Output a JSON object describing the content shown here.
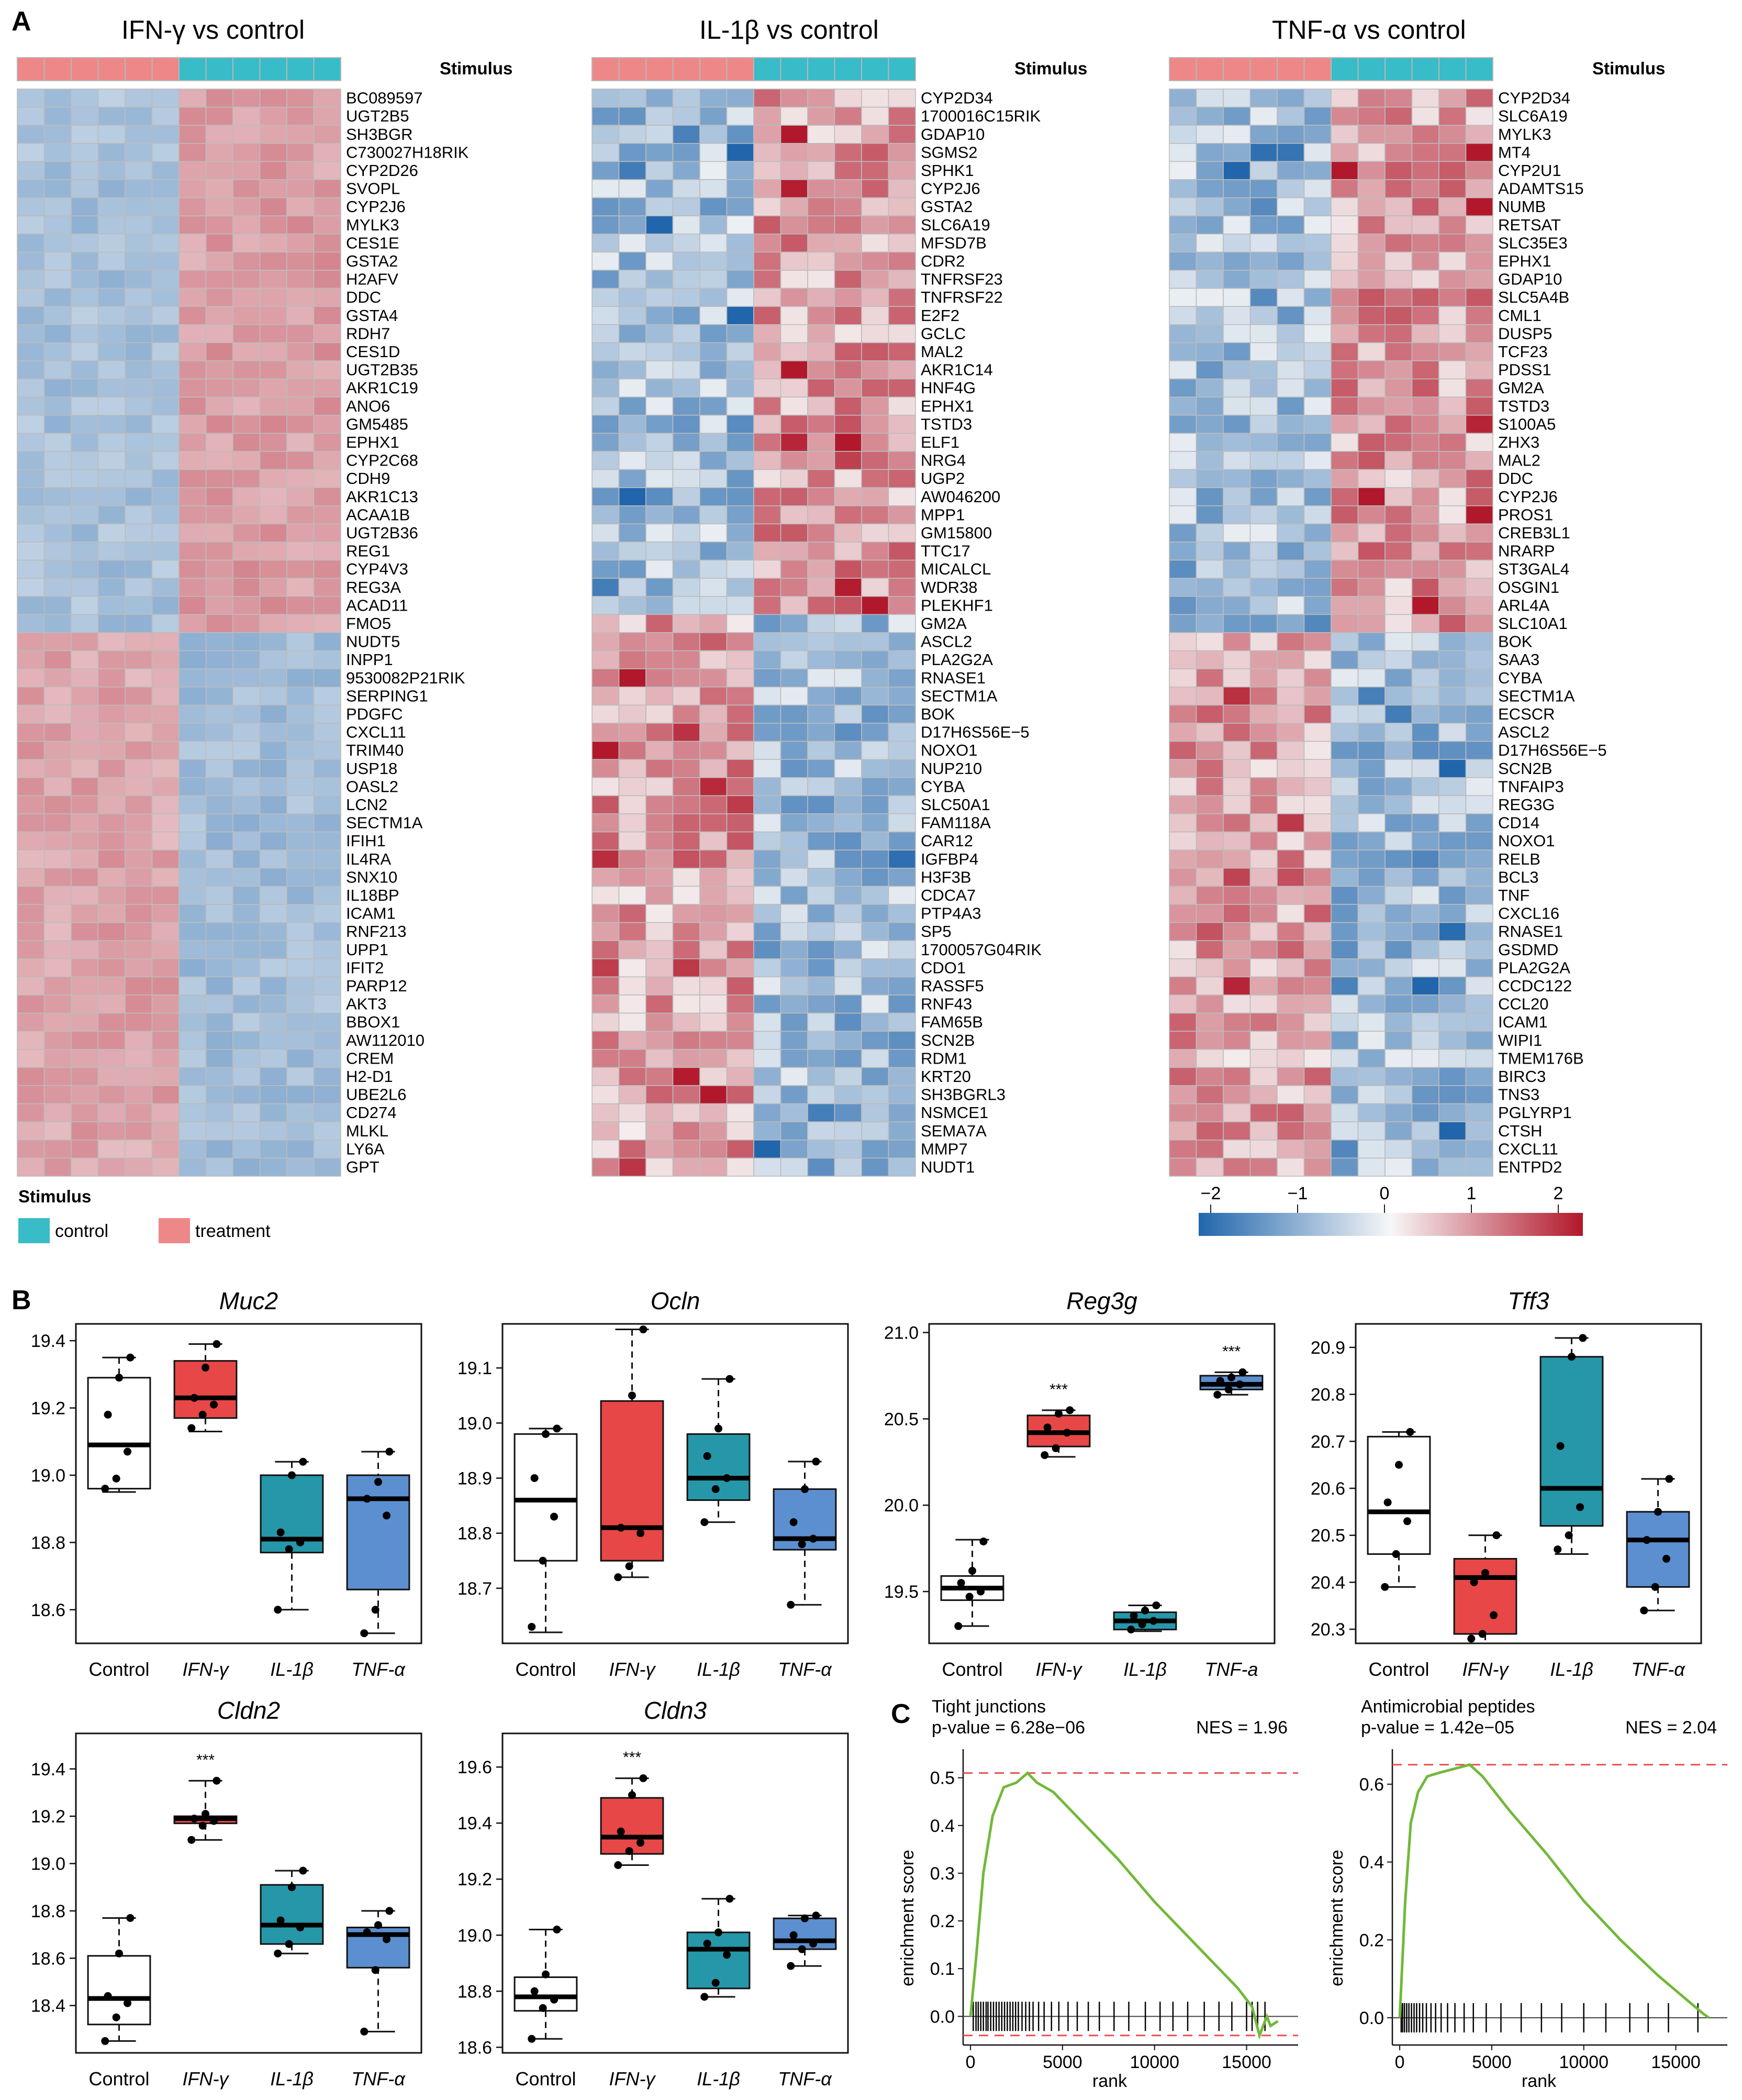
{
  "panel_labels": {
    "a": "A",
    "b": "B",
    "c": "C"
  },
  "heatmaps": [
    {
      "title": "IFN-γ vs control",
      "stimulus_label": "Stimulus",
      "up_count": 30,
      "genes": [
        "BC089597",
        "UGT2B5",
        "SH3BGR",
        "C730027H18RIK",
        "CYP2D26",
        "SVOPL",
        "CYP2J6",
        "MYLK3",
        "CES1E",
        "GSTA2",
        "H2AFV",
        "DDC",
        "GSTA4",
        "RDH7",
        "CES1D",
        "UGT2B35",
        "AKR1C19",
        "ANO6",
        "GM5485",
        "EPHX1",
        "CYP2C68",
        "CDH9",
        "AKR1C13",
        "ACAA1B",
        "UGT2B36",
        "REG1",
        "CYP4V3",
        "REG3A",
        "ACAD11",
        "FMO5",
        "NUDT5",
        "INPP1",
        "9530082P21RIK",
        "SERPING1",
        "PDGFC",
        "CXCL11",
        "TRIM40",
        "USP18",
        "OASL2",
        "LCN2",
        "SECTM1A",
        "IFIH1",
        "IL4RA",
        "SNX10",
        "IL18BP",
        "ICAM1",
        "RNF213",
        "UPP1",
        "IFIT2",
        "PARP12",
        "AKT3",
        "BBOX1",
        "AW112010",
        "CREM",
        "H2-D1",
        "UBE2L6",
        "CD274",
        "MLKL",
        "LY6A",
        "GPT"
      ]
    },
    {
      "title": "IL-1β vs control",
      "stimulus_label": "Stimulus",
      "up_count": 29,
      "genes": [
        "CYP2D34",
        "1700016C15RIK",
        "GDAP10",
        "SGMS2",
        "SPHK1",
        "CYP2J6",
        "GSTA2",
        "SLC6A19",
        "MFSD7B",
        "CDR2",
        "TNFRSF23",
        "TNFRSF22",
        "E2F2",
        "GCLC",
        "MAL2",
        "AKR1C14",
        "HNF4G",
        "EPHX1",
        "TSTD3",
        "ELF1",
        "NRG4",
        "UGP2",
        "AW046200",
        "MPP1",
        "GM15800",
        "TTC17",
        "MICALCL",
        "WDR38",
        "PLEKHF1",
        "GM2A",
        "ASCL2",
        "PLA2G2A",
        "RNASE1",
        "SECTM1A",
        "BOK",
        "D17H6S56E−5",
        "NOXO1",
        "NUP210",
        "CYBA",
        "SLC50A1",
        "FAM118A",
        "CAR12",
        "IGFBP4",
        "H3F3B",
        "CDCA7",
        "PTP4A3",
        "SP5",
        "1700057G04RIK",
        "CDO1",
        "RASSF5",
        "RNF43",
        "FAM65B",
        "SCN2B",
        "RDM1",
        "KRT20",
        "SH3BGRL3",
        "NSMCE1",
        "SEMA7A",
        "MMP7",
        "NUDT1"
      ]
    },
    {
      "title": "TNF-α vs control",
      "stimulus_label": "Stimulus",
      "up_count": 30,
      "genes": [
        "CYP2D34",
        "SLC6A19",
        "MYLK3",
        "MT4",
        "CYP2U1",
        "ADAMTS15",
        "NUMB",
        "RETSAT",
        "SLC35E3",
        "EPHX1",
        "GDAP10",
        "SLC5A4B",
        "CML1",
        "DUSP5",
        "TCF23",
        "PDSS1",
        "GM2A",
        "TSTD3",
        "S100A5",
        "ZHX3",
        "MAL2",
        "DDC",
        "CYP2J6",
        "PROS1",
        "CREB3L1",
        "NRARP",
        "ST3GAL4",
        "OSGIN1",
        "ARL4A",
        "SLC10A1",
        "BOK",
        "SAA3",
        "CYBA",
        "SECTM1A",
        "ECSCR",
        "ASCL2",
        "D17H6S56E−5",
        "SCN2B",
        "TNFAIP3",
        "REG3G",
        "CD14",
        "NOXO1",
        "RELB",
        "BCL3",
        "TNF",
        "CXCL16",
        "RNASE1",
        "GSDMD",
        "PLA2G2A",
        "CCDC122",
        "CCL20",
        "ICAM1",
        "WIPI1",
        "TMEM176B",
        "BIRC3",
        "TNS3",
        "PGLYRP1",
        "CTSH",
        "CXCL11",
        "ENTPD2"
      ]
    }
  ],
  "legend": {
    "title": "Stimulus",
    "control": "control",
    "treatment": "treatment",
    "control_color": "#38BCC8",
    "treatment_color": "#EE8888"
  },
  "colorbar": {
    "ticks": [
      "−2",
      "−1",
      "0",
      "1",
      "2"
    ],
    "low_color": "#2166AC",
    "mid_color": "#F7F7F7",
    "high_color": "#B2182B"
  },
  "group_colors": {
    "Control": "#FFFFFF",
    "IFN-γ": "#E84747",
    "IL-1β": "#2697A9",
    "TNF-α": "#5B8FD0"
  },
  "chart_data": [
    {
      "type": "box",
      "title": "Muc2",
      "categories": [
        "Control",
        "IFN-γ",
        "IL-1β",
        "TNF-α"
      ],
      "ylim": [
        18.5,
        19.45
      ],
      "yticks": [
        "18.6",
        "18.8",
        "19.0",
        "19.2",
        "19.4"
      ],
      "ytick_values": [
        18.6,
        18.8,
        19.0,
        19.2,
        19.4
      ],
      "boxes": [
        {
          "min": 18.95,
          "q1": 18.96,
          "median": 19.09,
          "q3": 19.29,
          "max": 19.35
        },
        {
          "min": 19.13,
          "q1": 19.17,
          "median": 19.23,
          "q3": 19.34,
          "max": 19.39
        },
        {
          "min": 18.6,
          "q1": 18.77,
          "median": 18.81,
          "q3": 19.0,
          "max": 19.04
        },
        {
          "min": 18.53,
          "q1": 18.66,
          "median": 18.93,
          "q3": 19.0,
          "max": 19.07
        }
      ],
      "points": [
        [
          18.96,
          18.99,
          19.07,
          19.18,
          19.29,
          19.35
        ],
        [
          19.14,
          19.18,
          19.21,
          19.23,
          19.32,
          19.39
        ],
        [
          18.6,
          18.78,
          18.8,
          18.83,
          19.0,
          19.04
        ],
        [
          18.53,
          18.6,
          18.88,
          18.93,
          18.98,
          19.07
        ]
      ],
      "significance": [
        "",
        "",
        "",
        ""
      ]
    },
    {
      "type": "box",
      "title": "Ocln",
      "categories": [
        "Control",
        "IFN-γ",
        "IL-1β",
        "TNF-α"
      ],
      "ylim": [
        18.6,
        19.18
      ],
      "yticks": [
        "18.7",
        "18.8",
        "18.9",
        "19.0",
        "19.1"
      ],
      "ytick_values": [
        18.7,
        18.8,
        18.9,
        19.0,
        19.1
      ],
      "boxes": [
        {
          "min": 18.62,
          "q1": 18.75,
          "median": 18.86,
          "q3": 18.98,
          "max": 18.99
        },
        {
          "min": 18.72,
          "q1": 18.75,
          "median": 18.81,
          "q3": 19.04,
          "max": 19.17
        },
        {
          "min": 18.82,
          "q1": 18.86,
          "median": 18.9,
          "q3": 18.98,
          "max": 19.08
        },
        {
          "min": 18.67,
          "q1": 18.77,
          "median": 18.79,
          "q3": 18.88,
          "max": 18.93
        }
      ],
      "points": [
        [
          18.63,
          18.75,
          18.83,
          18.9,
          18.98,
          18.99
        ],
        [
          18.72,
          18.74,
          18.8,
          18.81,
          19.05,
          19.17
        ],
        [
          18.82,
          18.88,
          18.9,
          18.94,
          18.99,
          19.08
        ],
        [
          18.67,
          18.78,
          18.79,
          18.82,
          18.88,
          18.93
        ]
      ],
      "significance": [
        "",
        "",
        "",
        ""
      ]
    },
    {
      "type": "box",
      "title": "Reg3g",
      "categories": [
        "Control",
        "IFN-γ",
        "IL-1β",
        "TNF-a"
      ],
      "ylim": [
        19.2,
        21.05
      ],
      "yticks": [
        "19.5",
        "20.0",
        "20.5",
        "21.0"
      ],
      "ytick_values": [
        19.5,
        20.0,
        20.5,
        21.0
      ],
      "boxes": [
        {
          "min": 19.3,
          "q1": 19.45,
          "median": 19.52,
          "q3": 19.59,
          "max": 19.8
        },
        {
          "min": 20.28,
          "q1": 20.34,
          "median": 20.42,
          "q3": 20.52,
          "max": 20.55
        },
        {
          "min": 19.27,
          "q1": 19.28,
          "median": 19.33,
          "q3": 19.38,
          "max": 19.42
        },
        {
          "min": 20.64,
          "q1": 20.67,
          "median": 20.7,
          "q3": 20.75,
          "max": 20.77
        }
      ],
      "points": [
        [
          19.3,
          19.47,
          19.5,
          19.55,
          19.62,
          19.79
        ],
        [
          20.29,
          20.33,
          20.42,
          20.45,
          20.53,
          20.55
        ],
        [
          19.28,
          19.31,
          19.33,
          19.36,
          19.39,
          19.42
        ],
        [
          20.64,
          20.67,
          20.7,
          20.72,
          20.74,
          20.77
        ]
      ],
      "significance": [
        "",
        "***",
        "",
        "***"
      ]
    },
    {
      "type": "box",
      "title": "Tff3",
      "categories": [
        "Control",
        "IFN-γ",
        "IL-1β",
        "TNF-α"
      ],
      "ylim": [
        20.27,
        20.95
      ],
      "yticks": [
        "20.3",
        "20.4",
        "20.5",
        "20.6",
        "20.7",
        "20.8",
        "20.9"
      ],
      "ytick_values": [
        20.3,
        20.4,
        20.5,
        20.6,
        20.7,
        20.8,
        20.9
      ],
      "boxes": [
        {
          "min": 20.39,
          "q1": 20.46,
          "median": 20.55,
          "q3": 20.71,
          "max": 20.72
        },
        {
          "min": 20.27,
          "q1": 20.29,
          "median": 20.41,
          "q3": 20.45,
          "max": 20.5
        },
        {
          "min": 20.46,
          "q1": 20.52,
          "median": 20.6,
          "q3": 20.88,
          "max": 20.92
        },
        {
          "min": 20.34,
          "q1": 20.39,
          "median": 20.49,
          "q3": 20.55,
          "max": 20.62
        }
      ],
      "points": [
        [
          20.39,
          20.46,
          20.53,
          20.57,
          20.65,
          20.72
        ],
        [
          20.28,
          20.29,
          20.33,
          20.4,
          20.42,
          20.5
        ],
        [
          20.47,
          20.5,
          20.56,
          20.69,
          20.88,
          20.92
        ],
        [
          20.34,
          20.39,
          20.45,
          20.49,
          20.55,
          20.62
        ]
      ],
      "significance": [
        "",
        "",
        "",
        ""
      ]
    },
    {
      "type": "box",
      "title": "Cldn2",
      "categories": [
        "Control",
        "IFN-γ",
        "IL-1β",
        "TNF-α"
      ],
      "ylim": [
        18.2,
        19.55
      ],
      "yticks": [
        "18.4",
        "18.6",
        "18.8",
        "19.0",
        "19.2",
        "19.4"
      ],
      "ytick_values": [
        18.4,
        18.6,
        18.8,
        19.0,
        19.2,
        19.4
      ],
      "boxes": [
        {
          "min": 18.25,
          "q1": 18.32,
          "median": 18.43,
          "q3": 18.61,
          "max": 18.77
        },
        {
          "min": 19.1,
          "q1": 19.17,
          "median": 19.19,
          "q3": 19.2,
          "max": 19.35
        },
        {
          "min": 18.62,
          "q1": 18.66,
          "median": 18.74,
          "q3": 18.91,
          "max": 18.97
        },
        {
          "min": 18.29,
          "q1": 18.56,
          "median": 18.7,
          "q3": 18.73,
          "max": 18.8
        }
      ],
      "points": [
        [
          18.25,
          18.35,
          18.41,
          18.44,
          18.62,
          18.77
        ],
        [
          19.1,
          19.16,
          19.18,
          19.19,
          19.21,
          19.35
        ],
        [
          18.62,
          18.66,
          18.73,
          18.76,
          18.9,
          18.97
        ],
        [
          18.29,
          18.55,
          18.68,
          18.71,
          18.74,
          18.8
        ]
      ],
      "significance": [
        "",
        "***",
        "",
        ""
      ]
    },
    {
      "type": "box",
      "title": "Cldn3",
      "categories": [
        "Control",
        "IFN-γ",
        "IL-1β",
        "TNF-α"
      ],
      "ylim": [
        18.58,
        19.72
      ],
      "yticks": [
        "18.6",
        "18.8",
        "19.0",
        "19.2",
        "19.4",
        "19.6"
      ],
      "ytick_values": [
        18.6,
        18.8,
        19.0,
        19.2,
        19.4,
        19.6
      ],
      "boxes": [
        {
          "min": 18.63,
          "q1": 18.73,
          "median": 18.78,
          "q3": 18.85,
          "max": 19.02
        },
        {
          "min": 19.25,
          "q1": 19.29,
          "median": 19.35,
          "q3": 19.49,
          "max": 19.56
        },
        {
          "min": 18.78,
          "q1": 18.81,
          "median": 18.95,
          "q3": 19.01,
          "max": 19.13
        },
        {
          "min": 18.89,
          "q1": 18.95,
          "median": 18.98,
          "q3": 19.06,
          "max": 19.07
        }
      ],
      "points": [
        [
          18.63,
          18.74,
          18.77,
          18.8,
          18.86,
          19.02
        ],
        [
          19.25,
          19.3,
          19.33,
          19.37,
          19.5,
          19.56
        ],
        [
          18.78,
          18.83,
          18.93,
          18.97,
          19.01,
          19.13
        ],
        [
          18.89,
          18.95,
          18.97,
          19.0,
          19.06,
          19.07
        ]
      ],
      "significance": [
        "",
        "***",
        "",
        ""
      ]
    },
    {
      "type": "line",
      "title": "Tight junctions",
      "pvalue_text": "p-value = 6.28e−06",
      "nes_text": "NES = 1.96",
      "xlabel": "rank",
      "ylabel": "enrichment score",
      "xlim": [
        -400,
        17800
      ],
      "ylim": [
        -0.06,
        0.56
      ],
      "xticks": [
        "0",
        "5000",
        "10000",
        "15000"
      ],
      "xtick_values": [
        0,
        5000,
        10000,
        15000
      ],
      "yticks": [
        "0.0",
        "0.1",
        "0.2",
        "0.3",
        "0.4",
        "0.5"
      ],
      "ytick_values": [
        0.0,
        0.1,
        0.2,
        0.3,
        0.4,
        0.5
      ],
      "max_es": 0.51,
      "min_es": -0.04,
      "curve": [
        [
          0,
          0
        ],
        [
          300,
          0.12
        ],
        [
          700,
          0.3
        ],
        [
          1200,
          0.42
        ],
        [
          1800,
          0.48
        ],
        [
          2500,
          0.49
        ],
        [
          3100,
          0.51
        ],
        [
          3600,
          0.49
        ],
        [
          4500,
          0.47
        ],
        [
          6000,
          0.41
        ],
        [
          8000,
          0.33
        ],
        [
          10000,
          0.24
        ],
        [
          12000,
          0.16
        ],
        [
          13500,
          0.1
        ],
        [
          14500,
          0.06
        ],
        [
          15300,
          0.02
        ],
        [
          15700,
          -0.04
        ],
        [
          16100,
          0.0
        ],
        [
          16300,
          -0.02
        ],
        [
          16700,
          -0.01
        ]
      ],
      "hits": [
        150,
        300,
        420,
        560,
        700,
        850,
        950,
        1100,
        1250,
        1400,
        1550,
        1700,
        1850,
        2000,
        2150,
        2300,
        2450,
        2600,
        2800,
        3000,
        3200,
        3400,
        3700,
        4000,
        4400,
        4800,
        5300,
        5800,
        6400,
        7000,
        7800,
        8600,
        9500,
        10300,
        11000,
        11800,
        12700,
        13500,
        14200,
        15000,
        15300,
        15600,
        16000
      ]
    },
    {
      "type": "line",
      "title": "Antimicrobial peptides",
      "pvalue_text": "p-value = 1.42e−05",
      "nes_text": "NES = 2.04",
      "xlabel": "rank",
      "ylabel": "enrichment score",
      "xlim": [
        -400,
        17800
      ],
      "ylim": [
        -0.07,
        0.69
      ],
      "xticks": [
        "0",
        "5000",
        "10000",
        "15000"
      ],
      "xtick_values": [
        0,
        5000,
        10000,
        15000
      ],
      "yticks": [
        "0.0",
        "0.2",
        "0.4",
        "0.6"
      ],
      "ytick_values": [
        0.0,
        0.2,
        0.4,
        0.6
      ],
      "max_es": 0.65,
      "min_es": 0.0,
      "curve": [
        [
          0,
          0
        ],
        [
          300,
          0.3
        ],
        [
          600,
          0.5
        ],
        [
          1000,
          0.58
        ],
        [
          1500,
          0.62
        ],
        [
          2200,
          0.63
        ],
        [
          3000,
          0.64
        ],
        [
          3800,
          0.65
        ],
        [
          4500,
          0.62
        ],
        [
          6000,
          0.53
        ],
        [
          8000,
          0.42
        ],
        [
          10000,
          0.3
        ],
        [
          12000,
          0.2
        ],
        [
          14000,
          0.11
        ],
        [
          15500,
          0.05
        ],
        [
          16500,
          0.01
        ],
        [
          16800,
          0.0
        ]
      ],
      "hits": [
        80,
        160,
        260,
        380,
        500,
        640,
        780,
        920,
        1080,
        1250,
        1450,
        1700,
        1950,
        2250,
        2600,
        3000,
        3500,
        4000,
        4700,
        5500,
        6600,
        7700,
        8800,
        10000,
        11200,
        12500,
        13500,
        14600,
        16200
      ]
    }
  ]
}
